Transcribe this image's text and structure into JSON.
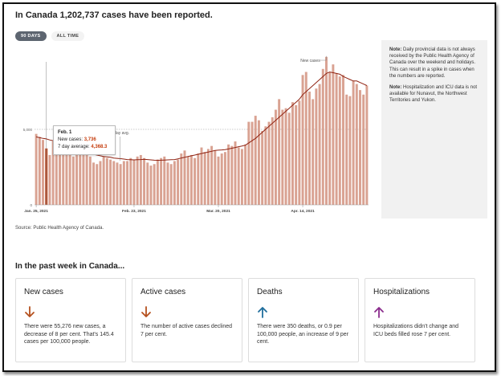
{
  "header": {
    "title": "In Canada 1,202,737 cases have been reported."
  },
  "toggles": {
    "active": "90 DAYS",
    "inactive": "ALL TIME"
  },
  "note": {
    "p1_bold": "Note:",
    "p1_text": "Daily provincial data is not always received by the Public Health Agency of Canada over the weekend and holidays. This can result in a spike in cases when the numbers are reported.",
    "p2_bold": "Note:",
    "p2_text": "Hospitalization and ICU data is not available for Nunavut, the Northwest Territories and Yukon."
  },
  "source": "Source: Public Health Agency of Canada.",
  "tooltip": {
    "date": "Feb. 1",
    "new_label": "New cases:",
    "new_value": "3,736",
    "avg_label": "7 day average:",
    "avg_value": "4,368.3"
  },
  "week_heading": "In the past week in Canada...",
  "cards": [
    {
      "title": "New cases",
      "arrow": "down",
      "color": "#b5501e",
      "text": "There were 55,276 new cases, a decrease of 8 per cent. That's 145.4 cases per 100,000 people."
    },
    {
      "title": "Active cases",
      "arrow": "down",
      "color": "#b5501e",
      "text": "The number of active cases declined 7 per cent."
    },
    {
      "title": "Deaths",
      "arrow": "up",
      "color": "#1f6e9c",
      "text": "There were 350 deaths, or 0.9 per 100,000 people, an increase of 9 per cent."
    },
    {
      "title": "Hospitalizations",
      "arrow": "up",
      "color": "#8a2c8c",
      "text": "Hospitalizations didn't change and ICU beds filled rose 7 per cent."
    }
  ],
  "chart_data": {
    "type": "bar",
    "x_tick_labels": [
      "Jan. 25, 2021",
      "Feb. 23, 2021",
      "Mar. 20, 2021",
      "Apr. 14, 2021"
    ],
    "y_tick_labels": [
      "0",
      "5,000"
    ],
    "ylim": [
      0,
      10000
    ],
    "annotations": [
      "New cases",
      "7 day avg."
    ],
    "values": [
      4700,
      4500,
      4300,
      3736,
      3300,
      4200,
      3900,
      3500,
      3700,
      3600,
      3400,
      3200,
      3500,
      3500,
      3400,
      3500,
      3200,
      2800,
      2700,
      2900,
      3200,
      3100,
      3000,
      2900,
      2800,
      2700,
      2900,
      2900,
      3100,
      3000,
      3200,
      3300,
      3100,
      2800,
      2600,
      2700,
      3000,
      3100,
      3200,
      2800,
      2700,
      2900,
      3000,
      3400,
      3600,
      3200,
      3300,
      3100,
      3400,
      3800,
      3500,
      3700,
      3900,
      3600,
      3200,
      3400,
      3500,
      4000,
      3900,
      4200,
      3800,
      3700,
      4000,
      5500,
      5500,
      5900,
      5600,
      4900,
      5200,
      5500,
      5800,
      6300,
      7000,
      6300,
      6400,
      6100,
      6800,
      6600,
      6900,
      8600,
      8800,
      7500,
      7000,
      7700,
      8000,
      9000,
      9800,
      8800,
      9300,
      8700,
      8500,
      8600,
      7300,
      7200,
      8200,
      8000,
      7600,
      7300,
      7900
    ],
    "avg": [
      4500,
      4450,
      4400,
      4368.3,
      4300,
      4250,
      4150,
      4050,
      3950,
      3850,
      3750,
      3650,
      3600,
      3550,
      3500,
      3450,
      3400,
      3350,
      3300,
      3250,
      3200,
      3180,
      3150,
      3100,
      3080,
      3060,
      3030,
      3000,
      2990,
      2980,
      2990,
      3000,
      3020,
      3000,
      2980,
      2960,
      2950,
      2960,
      2970,
      2980,
      2990,
      3000,
      3050,
      3100,
      3150,
      3200,
      3250,
      3300,
      3350,
      3400,
      3450,
      3500,
      3550,
      3600,
      3620,
      3640,
      3660,
      3700,
      3750,
      3800,
      3850,
      3900,
      3950,
      4100,
      4250,
      4400,
      4600,
      4800,
      5000,
      5200,
      5400,
      5600,
      5800,
      6000,
      6200,
      6400,
      6600,
      6800,
      7000,
      7300,
      7500,
      7700,
      7900,
      8100,
      8300,
      8500,
      8700,
      8800,
      8750,
      8700,
      8650,
      8500,
      8400,
      8300,
      8200,
      8200,
      8100,
      8000,
      7900
    ]
  }
}
